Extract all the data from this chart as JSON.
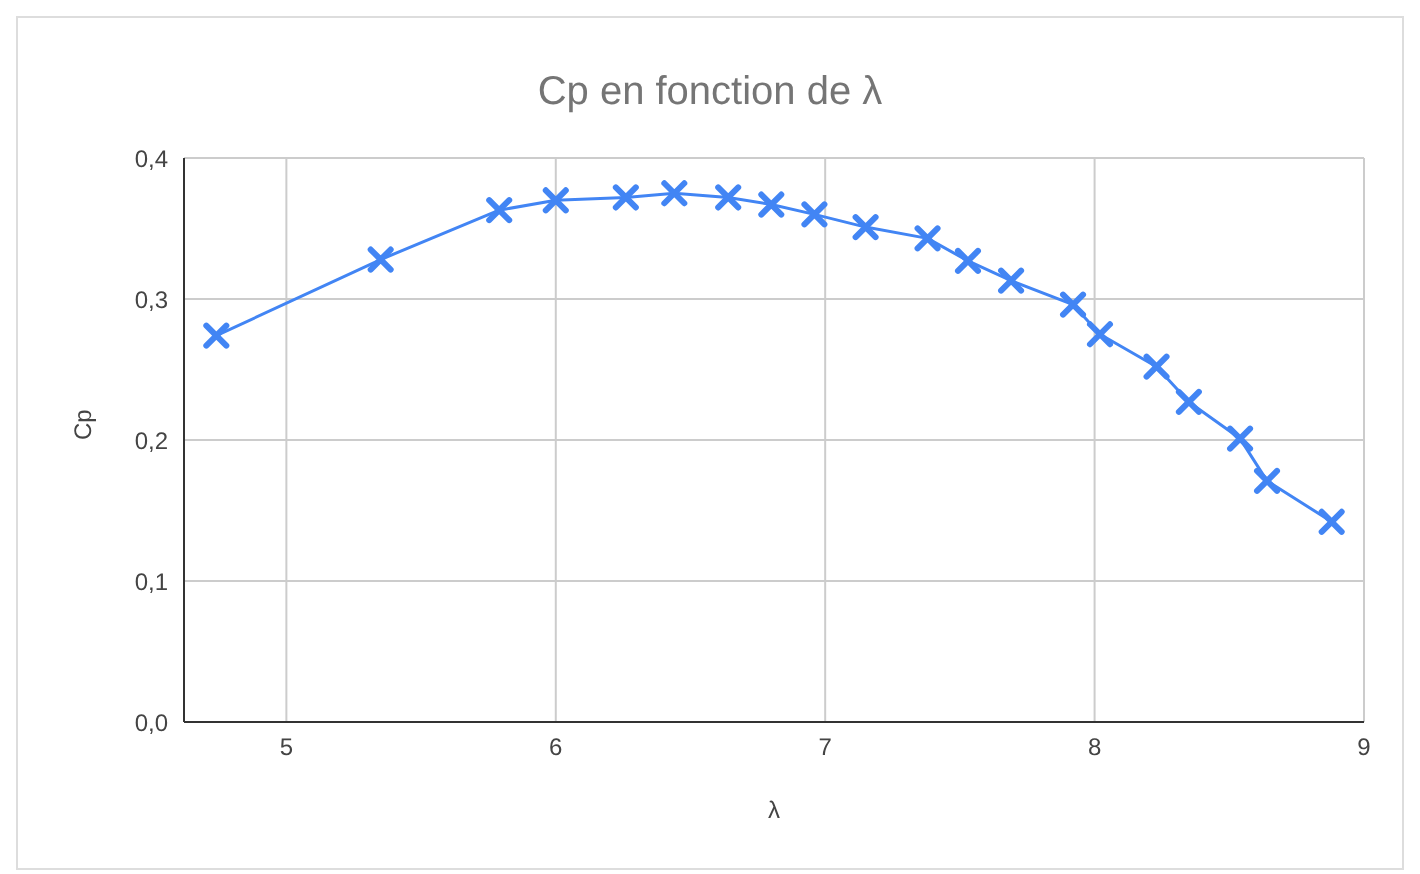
{
  "chart_data": {
    "type": "line",
    "title": "Cp en fonction de λ",
    "xlabel": "λ",
    "ylabel": "Cp",
    "x": [
      4.74,
      5.35,
      5.79,
      6.0,
      6.26,
      6.44,
      6.64,
      6.8,
      6.96,
      7.15,
      7.38,
      7.53,
      7.69,
      7.92,
      8.02,
      8.23,
      8.35,
      8.54,
      8.64,
      8.88
    ],
    "series": [
      {
        "color": "#4285f4",
        "values": [
          0.274,
          0.328,
          0.363,
          0.37,
          0.372,
          0.375,
          0.372,
          0.367,
          0.36,
          0.351,
          0.343,
          0.327,
          0.313,
          0.296,
          0.275,
          0.252,
          0.227,
          0.201,
          0.171,
          0.142
        ]
      }
    ],
    "xlim": [
      4.62,
      9
    ],
    "xticks": [
      5,
      6,
      7,
      8,
      9
    ],
    "ylim": [
      0,
      0.4
    ],
    "yticks": [
      {
        "value": 0,
        "label": "0,0"
      },
      {
        "value": 0.1,
        "label": "0,1"
      },
      {
        "value": 0.2,
        "label": "0,2"
      },
      {
        "value": 0.3,
        "label": "0,3"
      },
      {
        "value": 0.4,
        "label": "0,4"
      }
    ],
    "grid": true,
    "marker": "cross",
    "line_style": "solid",
    "legend": false
  }
}
